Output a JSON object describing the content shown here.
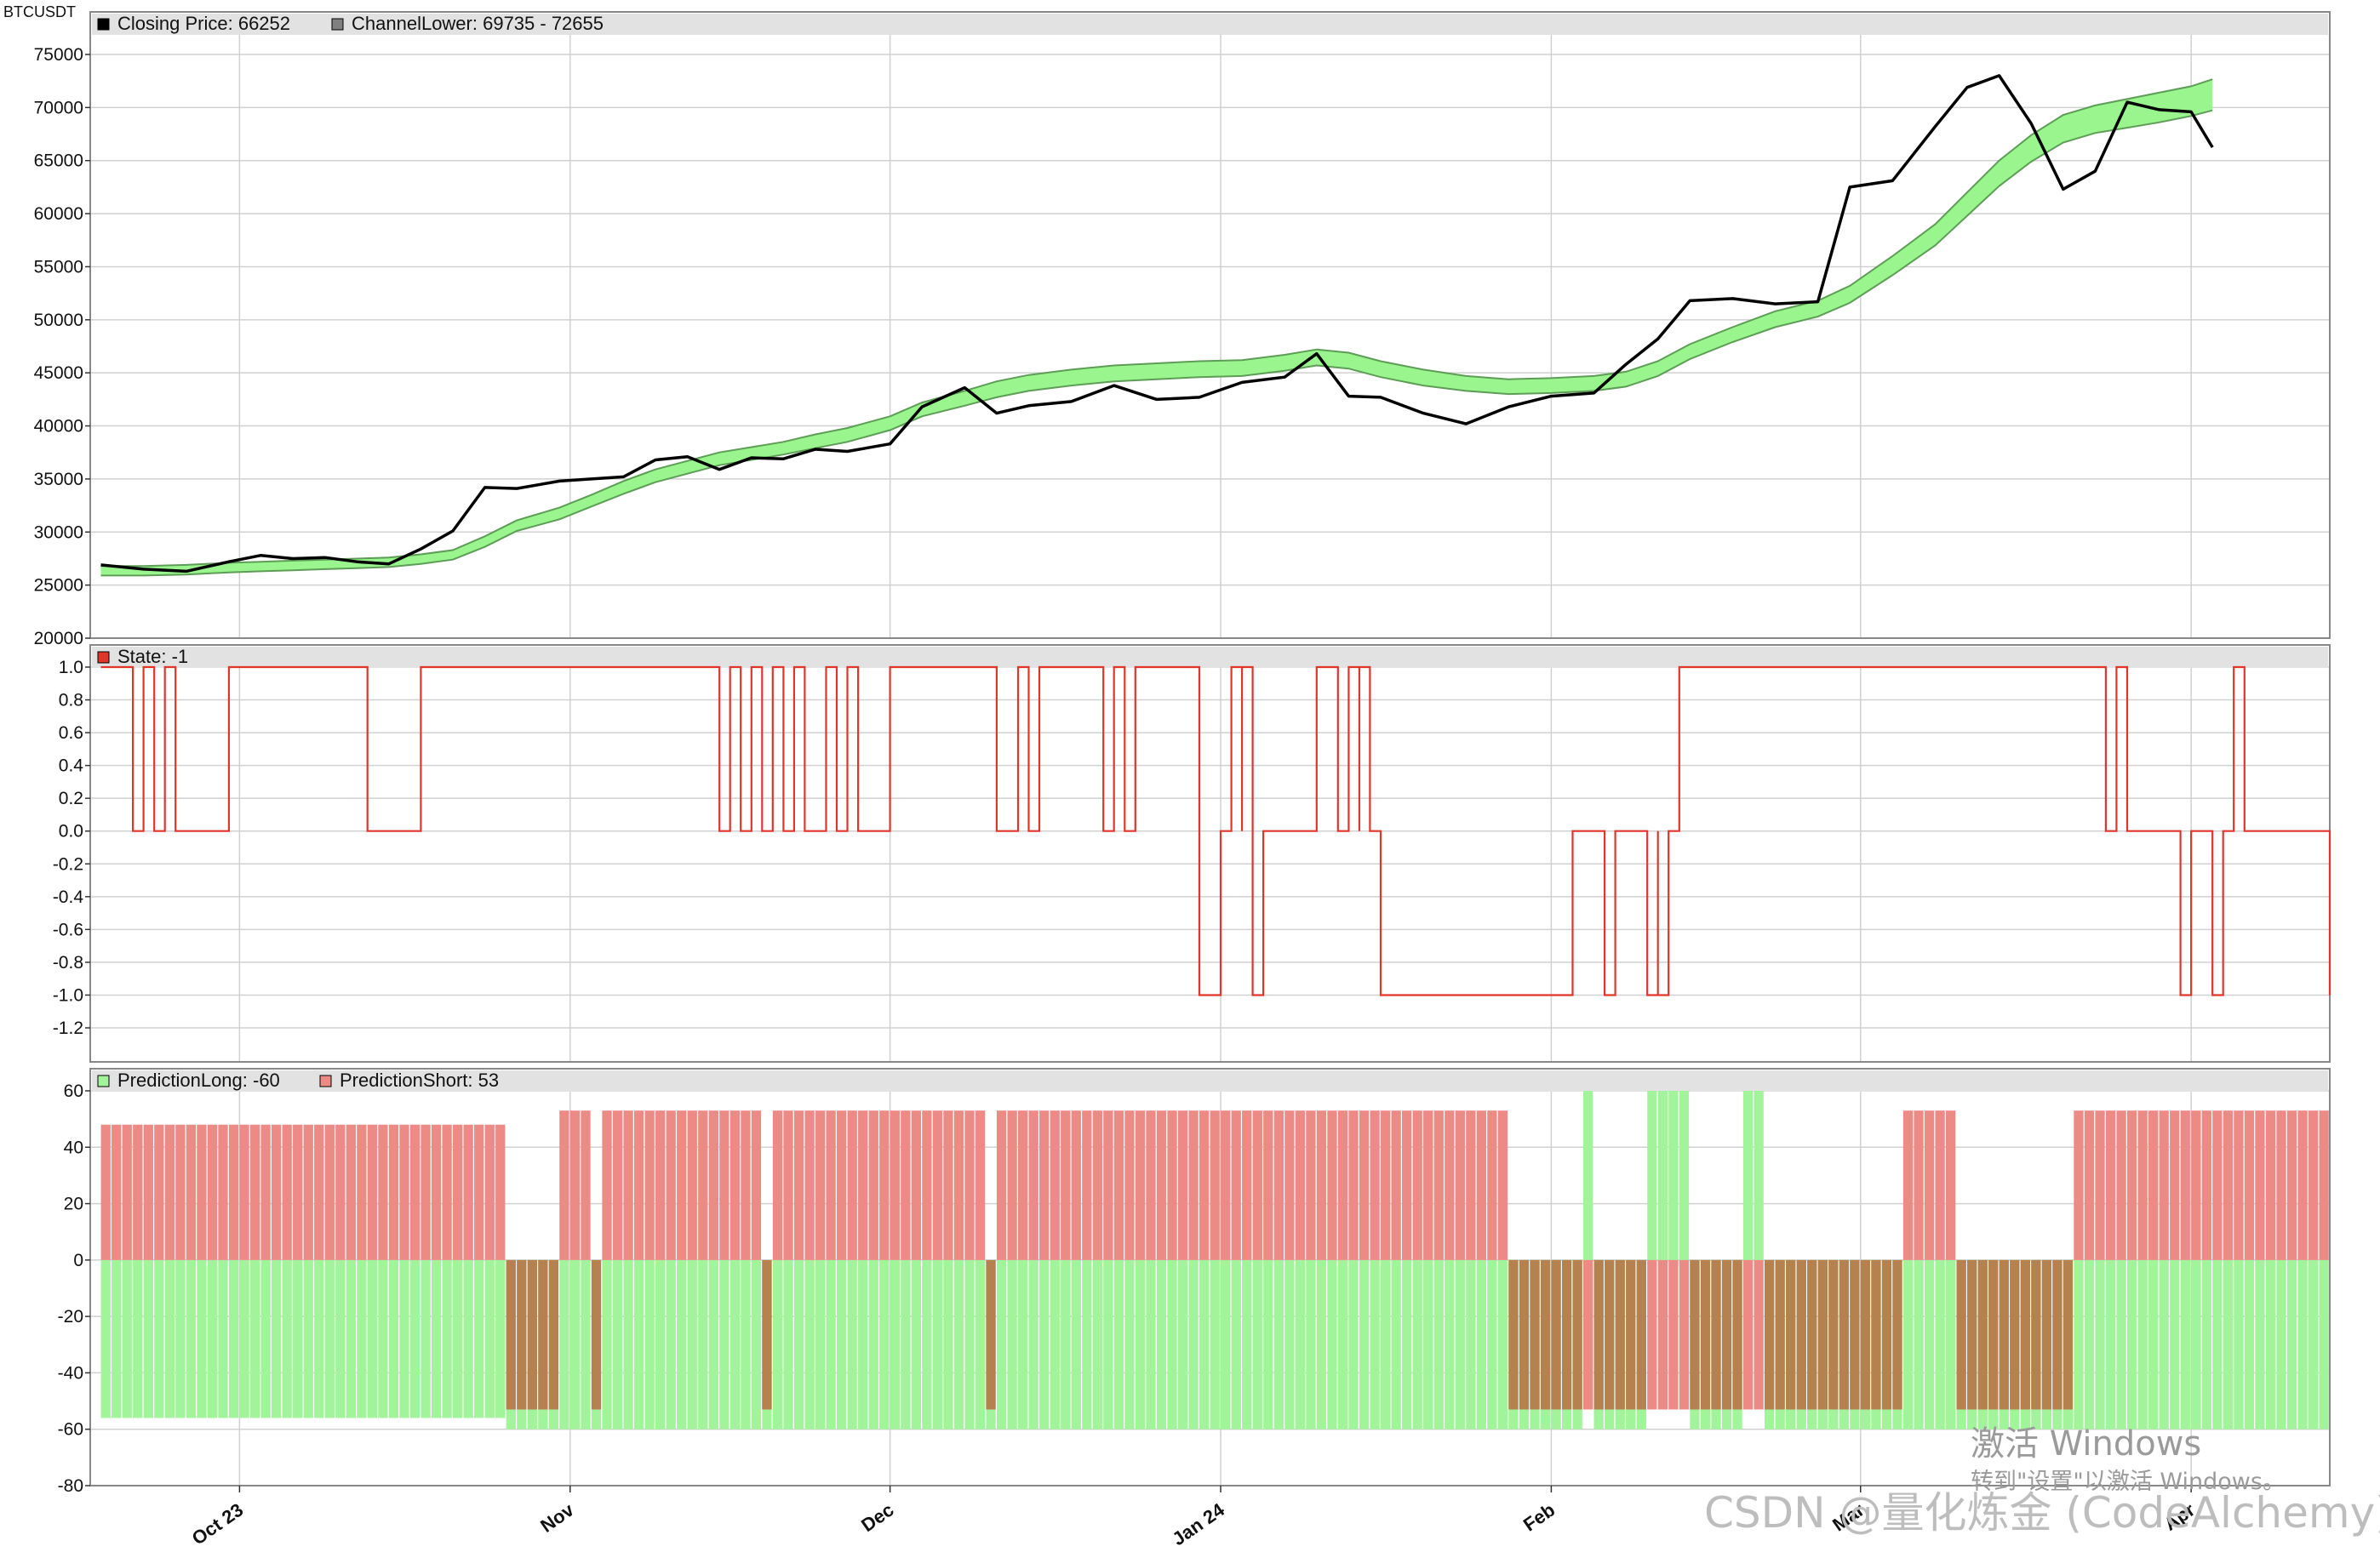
{
  "symbol": "BTCUSDT",
  "colors": {
    "price": "#000000",
    "channel_fill": "#9af58e",
    "channel_edge": "#5d9d56",
    "state": "#e0352b",
    "long": "#a2f49a",
    "short": "#ec8b86",
    "overlap": "#b4814f",
    "grid": "#d0d0d0",
    "legend_band": "#e2e2e2"
  },
  "date_axis": {
    "labels": [
      "Oct 23",
      "Nov",
      "Dec",
      "Jan 24",
      "Feb",
      "Mar",
      "Apr"
    ],
    "dates": [
      "2023-10-01",
      "2023-11-01",
      "2023-12-01",
      "2024-01-01",
      "2024-02-01",
      "2024-03-01",
      "2024-04-01"
    ]
  },
  "panels": {
    "price": {
      "legend": [
        {
          "label": "Closing Price: 66252",
          "swatch": "#000000"
        },
        {
          "label": "ChannelLower: 69735 - 72655",
          "swatch": "#808080"
        }
      ],
      "y_ticks": [
        "75000",
        "70000",
        "65000",
        "60000",
        "55000",
        "50000",
        "45000",
        "40000",
        "35000",
        "30000",
        "25000",
        "20000"
      ]
    },
    "state": {
      "legend": [
        {
          "label": "State: -1",
          "swatch": "#e0352b"
        }
      ],
      "y_ticks": [
        "1.0",
        "0.8",
        "0.6",
        "0.4",
        "0.2",
        "0.0",
        "-0.2",
        "-0.4",
        "-0.6",
        "-0.8",
        "-1.0",
        "-1.2"
      ]
    },
    "prediction": {
      "legend": [
        {
          "label": "PredictionLong: -60",
          "swatch": "#a2f49a"
        },
        {
          "label": "PredictionShort: 53",
          "swatch": "#ec8b86"
        }
      ],
      "y_ticks": [
        "60",
        "40",
        "20",
        "0",
        "-20",
        "-40",
        "-60",
        "-80"
      ]
    }
  },
  "chart_data": [
    {
      "type": "line",
      "panel": "price",
      "x_dates": [
        "2023-09-18",
        "2023-09-22",
        "2023-09-26",
        "2023-09-30",
        "2023-10-03",
        "2023-10-06",
        "2023-10-09",
        "2023-10-12",
        "2023-10-15",
        "2023-10-18",
        "2023-10-21",
        "2023-10-24",
        "2023-10-27",
        "2023-10-31",
        "2023-11-03",
        "2023-11-06",
        "2023-11-09",
        "2023-11-12",
        "2023-11-15",
        "2023-11-18",
        "2023-11-21",
        "2023-11-24",
        "2023-11-27",
        "2023-12-01",
        "2023-12-04",
        "2023-12-08",
        "2023-12-11",
        "2023-12-14",
        "2023-12-18",
        "2023-12-22",
        "2023-12-26",
        "2023-12-30",
        "2024-01-03",
        "2024-01-07",
        "2024-01-10",
        "2024-01-13",
        "2024-01-16",
        "2024-01-20",
        "2024-01-24",
        "2024-01-28",
        "2024-02-01",
        "2024-02-05",
        "2024-02-08",
        "2024-02-11",
        "2024-02-14",
        "2024-02-18",
        "2024-02-22",
        "2024-02-26",
        "2024-02-29",
        "2024-03-04",
        "2024-03-08",
        "2024-03-11",
        "2024-03-14",
        "2024-03-17",
        "2024-03-20",
        "2024-03-23",
        "2024-03-26",
        "2024-03-29",
        "2024-04-01",
        "2024-04-03"
      ],
      "closing_price": [
        26900,
        26500,
        26300,
        27200,
        27800,
        27500,
        27600,
        27200,
        27000,
        28400,
        30100,
        34200,
        34100,
        34800,
        35000,
        35200,
        36800,
        37100,
        35900,
        37000,
        36900,
        37800,
        37600,
        38300,
        41800,
        43600,
        41200,
        41900,
        42300,
        43800,
        42500,
        42700,
        44100,
        44600,
        46800,
        42800,
        42700,
        41200,
        40200,
        41800,
        42800,
        43100,
        45800,
        48200,
        51800,
        52000,
        51500,
        51700,
        62500,
        63100,
        68200,
        71900,
        73000,
        68500,
        62300,
        64000,
        70500,
        69800,
        69600,
        66252
      ],
      "channel_lower": [
        25900,
        25900,
        26000,
        26200,
        26300,
        26400,
        26500,
        26600,
        26700,
        27000,
        27400,
        28600,
        30100,
        31200,
        32400,
        33600,
        34700,
        35500,
        36300,
        36800,
        37300,
        37900,
        38500,
        39600,
        40900,
        41900,
        42700,
        43300,
        43800,
        44200,
        44400,
        44600,
        44700,
        45200,
        45700,
        45400,
        44600,
        43800,
        43300,
        43000,
        43100,
        43300,
        43700,
        44700,
        46300,
        47900,
        49300,
        50300,
        51600,
        54200,
        57000,
        59800,
        62600,
        64900,
        66700,
        67600,
        68100,
        68600,
        69200,
        69735
      ],
      "channel_upper": [
        26800,
        26800,
        26900,
        27100,
        27200,
        27300,
        27400,
        27500,
        27600,
        27900,
        28300,
        29600,
        31100,
        32300,
        33500,
        34800,
        35900,
        36700,
        37500,
        38000,
        38500,
        39200,
        39800,
        40900,
        42200,
        43300,
        44200,
        44800,
        45300,
        45700,
        45900,
        46100,
        46200,
        46700,
        47200,
        46900,
        46100,
        45300,
        44700,
        44400,
        44500,
        44700,
        45100,
        46100,
        47700,
        49300,
        50800,
        51800,
        53200,
        56000,
        59000,
        62000,
        65000,
        67400,
        69300,
        70200,
        70800,
        71400,
        72000,
        72655
      ],
      "ylim": [
        20000,
        75000
      ]
    },
    {
      "type": "line",
      "panel": "state",
      "state_changes": [
        [
          "2023-09-18",
          1
        ],
        [
          "2023-09-21",
          0
        ],
        [
          "2023-09-22",
          1
        ],
        [
          "2023-09-23",
          0
        ],
        [
          "2023-09-24",
          1
        ],
        [
          "2023-09-25",
          0
        ],
        [
          "2023-09-30",
          1
        ],
        [
          "2023-10-13",
          0
        ],
        [
          "2023-10-18",
          1
        ],
        [
          "2023-11-15",
          0
        ],
        [
          "2023-11-16",
          1
        ],
        [
          "2023-11-17",
          0
        ],
        [
          "2023-11-18",
          1
        ],
        [
          "2023-11-19",
          0
        ],
        [
          "2023-11-20",
          1
        ],
        [
          "2023-11-21",
          0
        ],
        [
          "2023-11-22",
          1
        ],
        [
          "2023-11-23",
          0
        ],
        [
          "2023-11-25",
          1
        ],
        [
          "2023-11-26",
          0
        ],
        [
          "2023-11-27",
          1
        ],
        [
          "2023-11-28",
          0
        ],
        [
          "2023-12-01",
          1
        ],
        [
          "2023-12-11",
          0
        ],
        [
          "2023-12-13",
          1
        ],
        [
          "2023-12-14",
          0
        ],
        [
          "2023-12-15",
          1
        ],
        [
          "2023-12-21",
          0
        ],
        [
          "2023-12-22",
          1
        ],
        [
          "2023-12-23",
          0
        ],
        [
          "2023-12-24",
          1
        ],
        [
          "2023-12-30",
          -1
        ],
        [
          "2024-01-01",
          0
        ],
        [
          "2024-01-02",
          1
        ],
        [
          "2024-01-03",
          0
        ],
        [
          "2024-01-03",
          1
        ],
        [
          "2024-01-04",
          -1
        ],
        [
          "2024-01-05",
          0
        ],
        [
          "2024-01-10",
          1
        ],
        [
          "2024-01-12",
          0
        ],
        [
          "2024-01-13",
          1
        ],
        [
          "2024-01-14",
          0
        ],
        [
          "2024-01-14",
          1
        ],
        [
          "2024-01-15",
          0
        ],
        [
          "2024-01-16",
          -1
        ],
        [
          "2024-02-03",
          0
        ],
        [
          "2024-02-06",
          -1
        ],
        [
          "2024-02-07",
          0
        ],
        [
          "2024-02-10",
          -1
        ],
        [
          "2024-02-11",
          0
        ],
        [
          "2024-02-11",
          -1
        ],
        [
          "2024-02-12",
          0
        ],
        [
          "2024-02-13",
          1
        ],
        [
          "2024-03-24",
          0
        ],
        [
          "2024-03-25",
          1
        ],
        [
          "2024-03-26",
          0
        ],
        [
          "2024-03-31",
          -1
        ],
        [
          "2024-04-01",
          0
        ],
        [
          "2024-04-03",
          -1
        ],
        [
          "2024-04-04",
          0
        ],
        [
          "2024-04-05",
          1
        ],
        [
          "2024-04-06",
          0
        ],
        [
          "2024-04-14",
          -1
        ]
      ],
      "ylim": [
        -1.2,
        1.0
      ]
    },
    {
      "type": "bar",
      "panel": "prediction",
      "periods": [
        {
          "from": "2023-09-18",
          "to": "2023-10-26",
          "long": -56,
          "short": 48
        },
        {
          "from": "2023-10-26",
          "to": "2023-10-31",
          "long": -60,
          "short": -53
        },
        {
          "from": "2023-10-31",
          "to": "2023-11-03",
          "long": -60,
          "short": 53
        },
        {
          "from": "2023-11-03",
          "to": "2023-11-04",
          "long": -60,
          "short": -53
        },
        {
          "from": "2023-11-04",
          "to": "2023-11-19",
          "long": -60,
          "short": 53
        },
        {
          "from": "2023-11-19",
          "to": "2023-11-20",
          "long": -60,
          "short": -53
        },
        {
          "from": "2023-11-20",
          "to": "2023-12-10",
          "long": -60,
          "short": 53
        },
        {
          "from": "2023-12-10",
          "to": "2023-12-11",
          "long": -60,
          "short": -53
        },
        {
          "from": "2023-12-11",
          "to": "2024-01-28",
          "long": -60,
          "short": 53
        },
        {
          "from": "2024-01-28",
          "to": "2024-02-04",
          "long": -60,
          "short": -53
        },
        {
          "from": "2024-02-04",
          "to": "2024-02-05",
          "long": 60,
          "short": -53
        },
        {
          "from": "2024-02-05",
          "to": "2024-02-10",
          "long": -60,
          "short": -53
        },
        {
          "from": "2024-02-10",
          "to": "2024-02-14",
          "long": 60,
          "short": -53
        },
        {
          "from": "2024-02-14",
          "to": "2024-02-19",
          "long": -60,
          "short": -53
        },
        {
          "from": "2024-02-19",
          "to": "2024-02-21",
          "long": 60,
          "short": -53
        },
        {
          "from": "2024-02-21",
          "to": "2024-03-05",
          "long": -60,
          "short": -53
        },
        {
          "from": "2024-03-05",
          "to": "2024-03-10",
          "long": -60,
          "short": 53
        },
        {
          "from": "2024-03-10",
          "to": "2024-03-21",
          "long": -60,
          "short": -53
        },
        {
          "from": "2024-03-21",
          "to": "2024-04-14",
          "long": -60,
          "short": 53
        }
      ],
      "ylim": [
        -80,
        60
      ]
    }
  ],
  "watermark": {
    "title": "激活 Windows",
    "subtitle": "转到\"设置\"以激活 Windows。",
    "credit": "CSDN @量化炼金 (CodeAlchemy)"
  }
}
